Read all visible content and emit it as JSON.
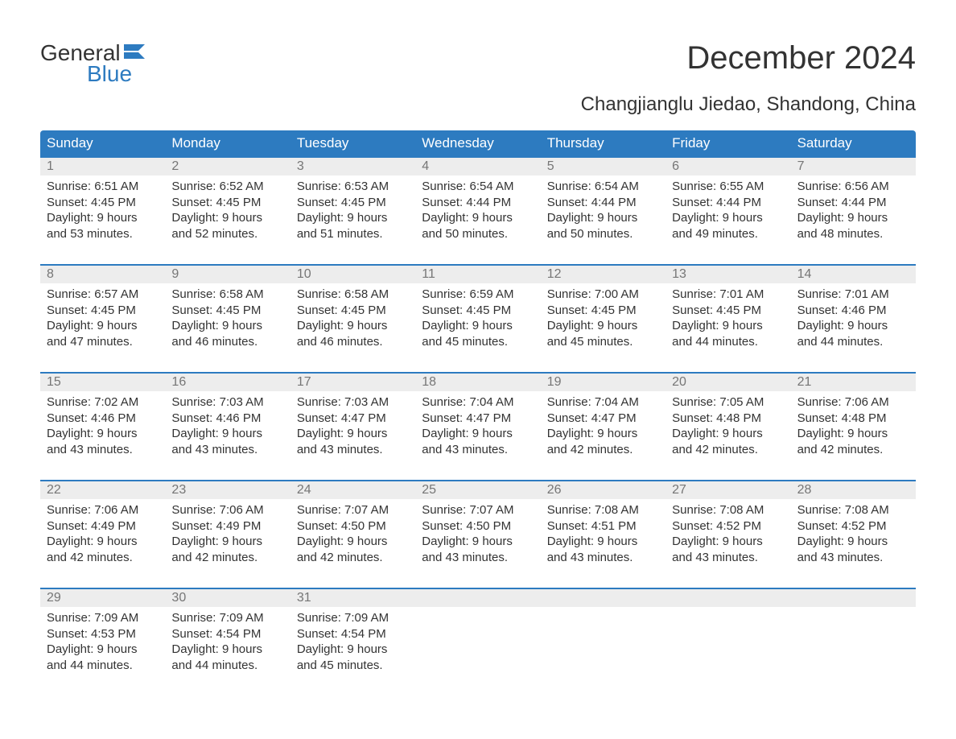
{
  "logo": {
    "text1": "General",
    "text2": "Blue",
    "flag_color": "#2d7bc0"
  },
  "title": "December 2024",
  "location": "Changjianglu Jiedao, Shandong, China",
  "colors": {
    "header_bg": "#2d7bc0",
    "header_text": "#ffffff",
    "daynum_bg": "#ededed",
    "daynum_text": "#767676",
    "body_text": "#333333",
    "week_border": "#2d7bc0"
  },
  "day_headers": [
    "Sunday",
    "Monday",
    "Tuesday",
    "Wednesday",
    "Thursday",
    "Friday",
    "Saturday"
  ],
  "weeks": [
    [
      {
        "d": "1",
        "sr": "Sunrise: 6:51 AM",
        "ss": "Sunset: 4:45 PM",
        "dl1": "Daylight: 9 hours",
        "dl2": "and 53 minutes."
      },
      {
        "d": "2",
        "sr": "Sunrise: 6:52 AM",
        "ss": "Sunset: 4:45 PM",
        "dl1": "Daylight: 9 hours",
        "dl2": "and 52 minutes."
      },
      {
        "d": "3",
        "sr": "Sunrise: 6:53 AM",
        "ss": "Sunset: 4:45 PM",
        "dl1": "Daylight: 9 hours",
        "dl2": "and 51 minutes."
      },
      {
        "d": "4",
        "sr": "Sunrise: 6:54 AM",
        "ss": "Sunset: 4:44 PM",
        "dl1": "Daylight: 9 hours",
        "dl2": "and 50 minutes."
      },
      {
        "d": "5",
        "sr": "Sunrise: 6:54 AM",
        "ss": "Sunset: 4:44 PM",
        "dl1": "Daylight: 9 hours",
        "dl2": "and 50 minutes."
      },
      {
        "d": "6",
        "sr": "Sunrise: 6:55 AM",
        "ss": "Sunset: 4:44 PM",
        "dl1": "Daylight: 9 hours",
        "dl2": "and 49 minutes."
      },
      {
        "d": "7",
        "sr": "Sunrise: 6:56 AM",
        "ss": "Sunset: 4:44 PM",
        "dl1": "Daylight: 9 hours",
        "dl2": "and 48 minutes."
      }
    ],
    [
      {
        "d": "8",
        "sr": "Sunrise: 6:57 AM",
        "ss": "Sunset: 4:45 PM",
        "dl1": "Daylight: 9 hours",
        "dl2": "and 47 minutes."
      },
      {
        "d": "9",
        "sr": "Sunrise: 6:58 AM",
        "ss": "Sunset: 4:45 PM",
        "dl1": "Daylight: 9 hours",
        "dl2": "and 46 minutes."
      },
      {
        "d": "10",
        "sr": "Sunrise: 6:58 AM",
        "ss": "Sunset: 4:45 PM",
        "dl1": "Daylight: 9 hours",
        "dl2": "and 46 minutes."
      },
      {
        "d": "11",
        "sr": "Sunrise: 6:59 AM",
        "ss": "Sunset: 4:45 PM",
        "dl1": "Daylight: 9 hours",
        "dl2": "and 45 minutes."
      },
      {
        "d": "12",
        "sr": "Sunrise: 7:00 AM",
        "ss": "Sunset: 4:45 PM",
        "dl1": "Daylight: 9 hours",
        "dl2": "and 45 minutes."
      },
      {
        "d": "13",
        "sr": "Sunrise: 7:01 AM",
        "ss": "Sunset: 4:45 PM",
        "dl1": "Daylight: 9 hours",
        "dl2": "and 44 minutes."
      },
      {
        "d": "14",
        "sr": "Sunrise: 7:01 AM",
        "ss": "Sunset: 4:46 PM",
        "dl1": "Daylight: 9 hours",
        "dl2": "and 44 minutes."
      }
    ],
    [
      {
        "d": "15",
        "sr": "Sunrise: 7:02 AM",
        "ss": "Sunset: 4:46 PM",
        "dl1": "Daylight: 9 hours",
        "dl2": "and 43 minutes."
      },
      {
        "d": "16",
        "sr": "Sunrise: 7:03 AM",
        "ss": "Sunset: 4:46 PM",
        "dl1": "Daylight: 9 hours",
        "dl2": "and 43 minutes."
      },
      {
        "d": "17",
        "sr": "Sunrise: 7:03 AM",
        "ss": "Sunset: 4:47 PM",
        "dl1": "Daylight: 9 hours",
        "dl2": "and 43 minutes."
      },
      {
        "d": "18",
        "sr": "Sunrise: 7:04 AM",
        "ss": "Sunset: 4:47 PM",
        "dl1": "Daylight: 9 hours",
        "dl2": "and 43 minutes."
      },
      {
        "d": "19",
        "sr": "Sunrise: 7:04 AM",
        "ss": "Sunset: 4:47 PM",
        "dl1": "Daylight: 9 hours",
        "dl2": "and 42 minutes."
      },
      {
        "d": "20",
        "sr": "Sunrise: 7:05 AM",
        "ss": "Sunset: 4:48 PM",
        "dl1": "Daylight: 9 hours",
        "dl2": "and 42 minutes."
      },
      {
        "d": "21",
        "sr": "Sunrise: 7:06 AM",
        "ss": "Sunset: 4:48 PM",
        "dl1": "Daylight: 9 hours",
        "dl2": "and 42 minutes."
      }
    ],
    [
      {
        "d": "22",
        "sr": "Sunrise: 7:06 AM",
        "ss": "Sunset: 4:49 PM",
        "dl1": "Daylight: 9 hours",
        "dl2": "and 42 minutes."
      },
      {
        "d": "23",
        "sr": "Sunrise: 7:06 AM",
        "ss": "Sunset: 4:49 PM",
        "dl1": "Daylight: 9 hours",
        "dl2": "and 42 minutes."
      },
      {
        "d": "24",
        "sr": "Sunrise: 7:07 AM",
        "ss": "Sunset: 4:50 PM",
        "dl1": "Daylight: 9 hours",
        "dl2": "and 42 minutes."
      },
      {
        "d": "25",
        "sr": "Sunrise: 7:07 AM",
        "ss": "Sunset: 4:50 PM",
        "dl1": "Daylight: 9 hours",
        "dl2": "and 43 minutes."
      },
      {
        "d": "26",
        "sr": "Sunrise: 7:08 AM",
        "ss": "Sunset: 4:51 PM",
        "dl1": "Daylight: 9 hours",
        "dl2": "and 43 minutes."
      },
      {
        "d": "27",
        "sr": "Sunrise: 7:08 AM",
        "ss": "Sunset: 4:52 PM",
        "dl1": "Daylight: 9 hours",
        "dl2": "and 43 minutes."
      },
      {
        "d": "28",
        "sr": "Sunrise: 7:08 AM",
        "ss": "Sunset: 4:52 PM",
        "dl1": "Daylight: 9 hours",
        "dl2": "and 43 minutes."
      }
    ],
    [
      {
        "d": "29",
        "sr": "Sunrise: 7:09 AM",
        "ss": "Sunset: 4:53 PM",
        "dl1": "Daylight: 9 hours",
        "dl2": "and 44 minutes."
      },
      {
        "d": "30",
        "sr": "Sunrise: 7:09 AM",
        "ss": "Sunset: 4:54 PM",
        "dl1": "Daylight: 9 hours",
        "dl2": "and 44 minutes."
      },
      {
        "d": "31",
        "sr": "Sunrise: 7:09 AM",
        "ss": "Sunset: 4:54 PM",
        "dl1": "Daylight: 9 hours",
        "dl2": "and 45 minutes."
      },
      null,
      null,
      null,
      null
    ]
  ]
}
